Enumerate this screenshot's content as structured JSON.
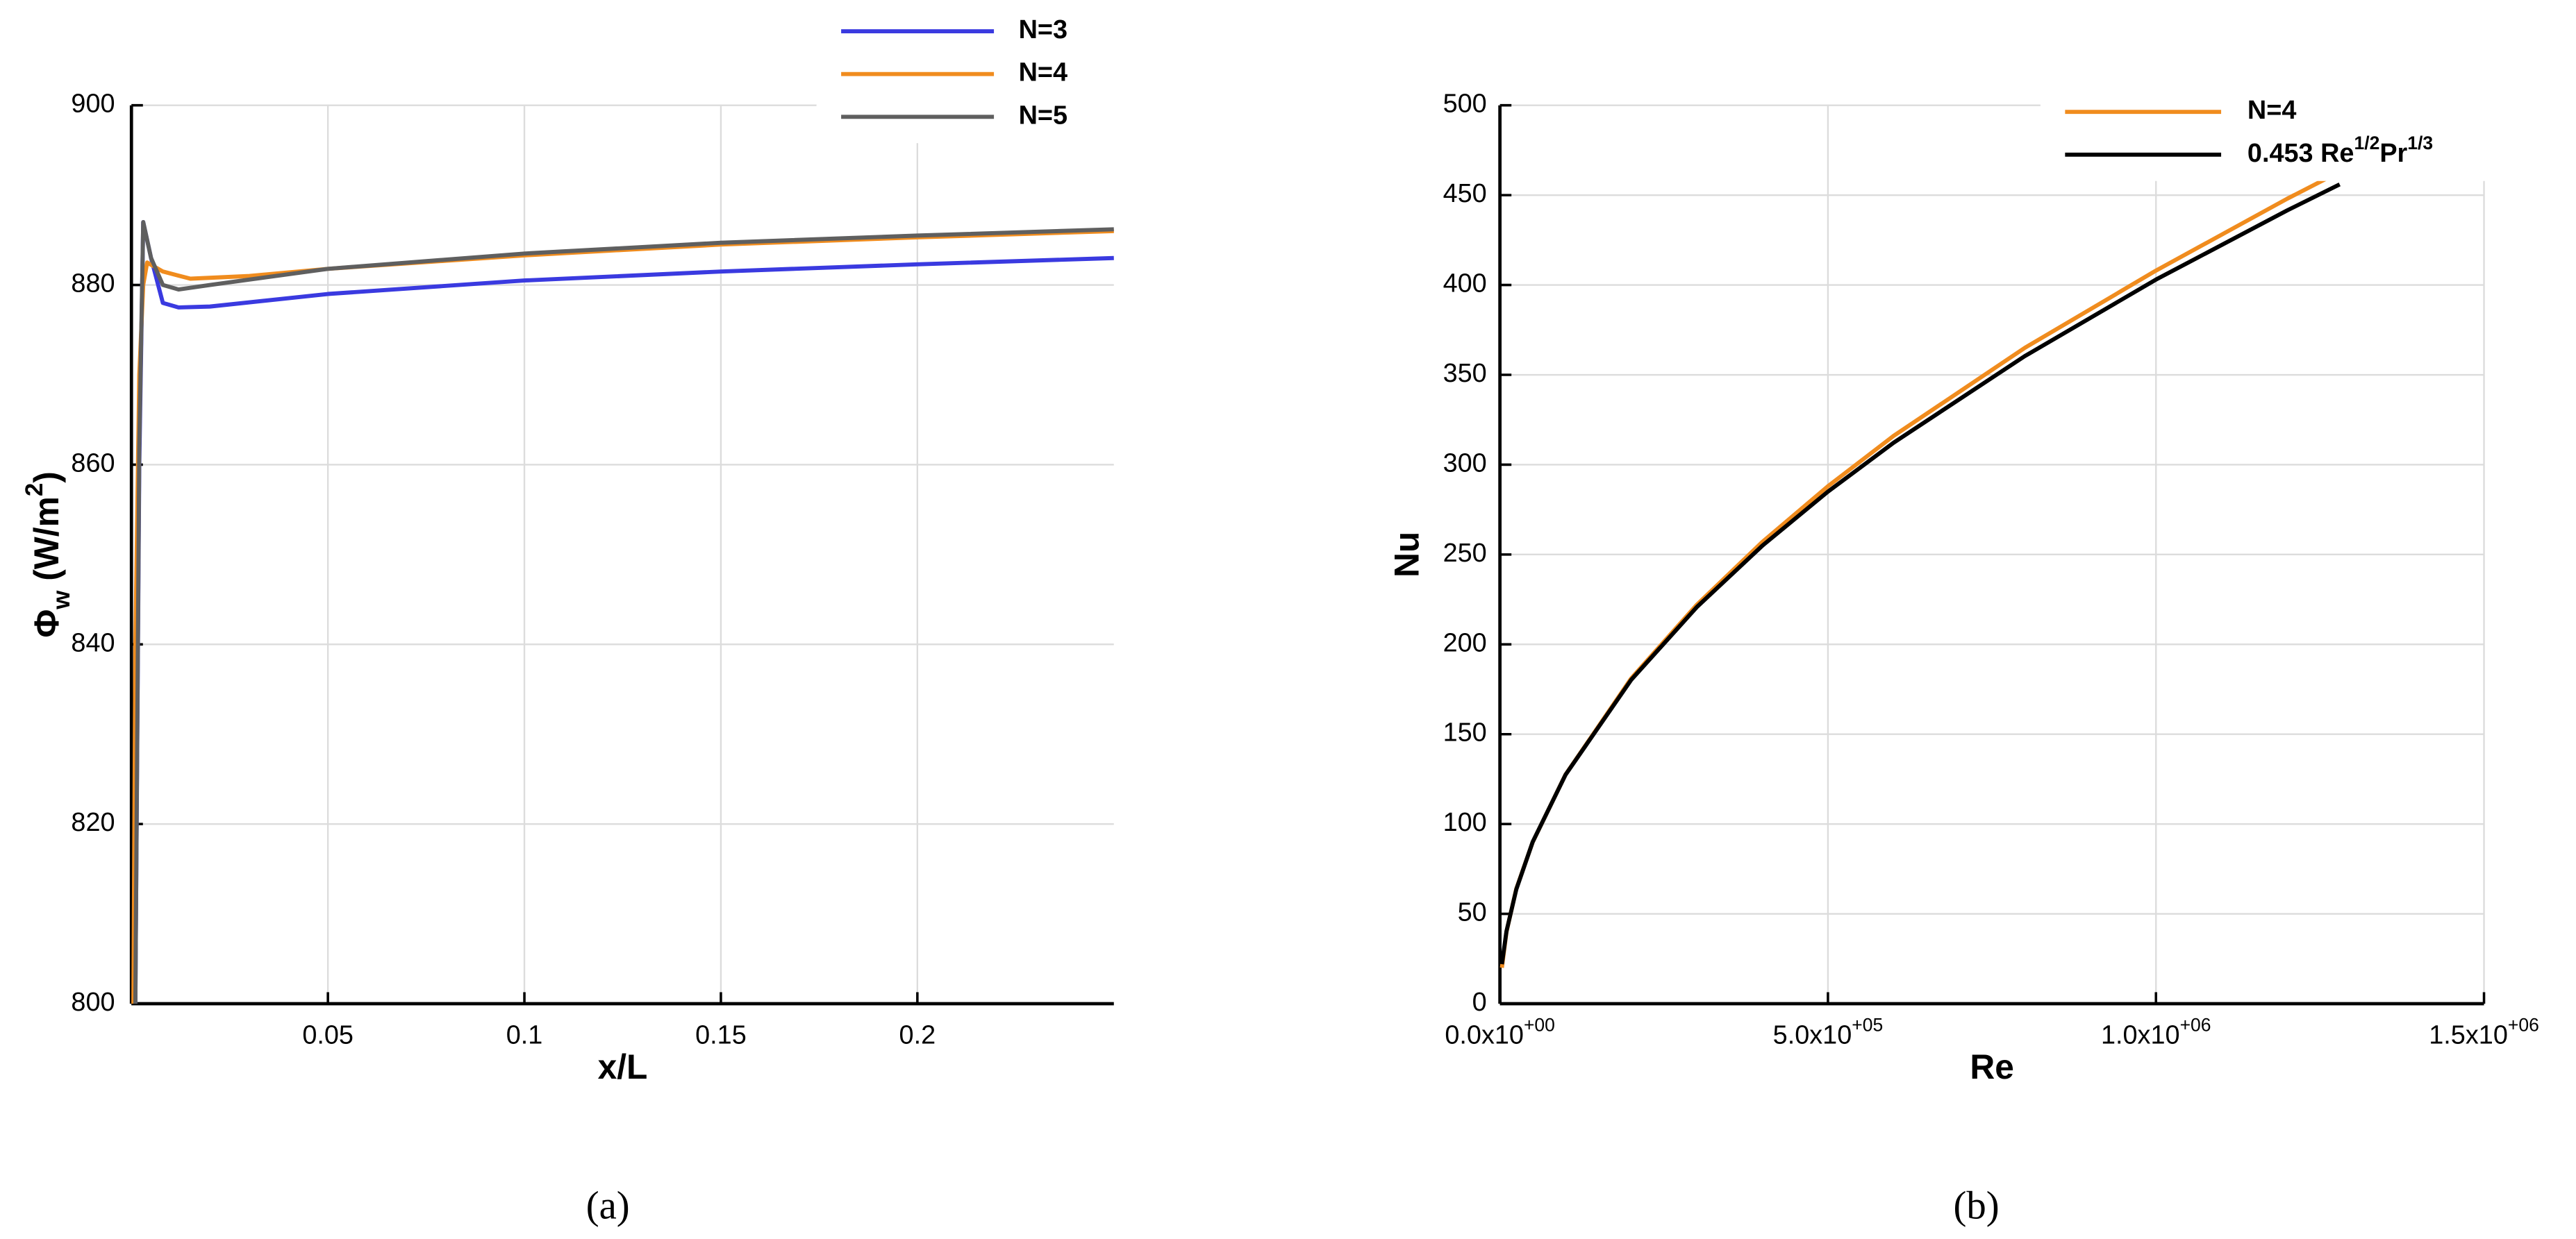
{
  "chart_data": [
    {
      "type": "line",
      "caption": "(a)",
      "xlabel": "x/L",
      "ylabel": "Φw (W/m2)",
      "xlim": [
        0,
        0.25
      ],
      "ylim": [
        800,
        900
      ],
      "xticks": [
        0.05,
        0.1,
        0.15,
        0.2
      ],
      "yticks": [
        800,
        820,
        840,
        860,
        880,
        900
      ],
      "grid": true,
      "legend": "top-right",
      "series": [
        {
          "name": "N=3",
          "color": "#3a3ae0",
          "x": [
            0.001,
            0.002,
            0.003,
            0.005,
            0.008,
            0.012,
            0.02,
            0.05,
            0.1,
            0.15,
            0.2,
            0.25
          ],
          "values": [
            800,
            860,
            887,
            883,
            878,
            877.5,
            877.6,
            879,
            880.5,
            881.5,
            882.3,
            883
          ]
        },
        {
          "name": "N=4",
          "color": "#f08c1e",
          "x": [
            0.0005,
            0.001,
            0.002,
            0.003,
            0.004,
            0.008,
            0.015,
            0.03,
            0.05,
            0.1,
            0.15,
            0.2,
            0.25
          ],
          "values": [
            800,
            840,
            870,
            880,
            882.5,
            881.5,
            880.7,
            881,
            881.8,
            883.3,
            884.5,
            885.3,
            886
          ]
        },
        {
          "name": "N=5",
          "color": "#5f5f5f",
          "x": [
            0.001,
            0.002,
            0.003,
            0.005,
            0.008,
            0.012,
            0.02,
            0.05,
            0.1,
            0.15,
            0.2,
            0.25
          ],
          "values": [
            800,
            862,
            887,
            883,
            880,
            879.5,
            880,
            881.8,
            883.5,
            884.7,
            885.5,
            886.2
          ]
        }
      ]
    },
    {
      "type": "line",
      "caption": "(b)",
      "xlabel": "Re",
      "ylabel": "Nu",
      "xlim": [
        0,
        1500000
      ],
      "ylim": [
        0,
        500
      ],
      "xticks": [
        {
          "value": 0,
          "label": "0.0x10+00"
        },
        {
          "value": 500000,
          "label": "5.0x10+05"
        },
        {
          "value": 1000000,
          "label": "1.0x10+06"
        },
        {
          "value": 1500000,
          "label": "1.5x10+06"
        }
      ],
      "yticks": [
        0,
        50,
        100,
        150,
        200,
        250,
        300,
        350,
        400,
        450,
        500
      ],
      "grid": true,
      "legend": "top-right",
      "series": [
        {
          "name": "N=4",
          "color": "#f08c1e",
          "x": [
            3000,
            10000,
            25000,
            50000,
            100000,
            200000,
            300000,
            400000,
            500000,
            600000,
            800000,
            1000000,
            1200000,
            1280000
          ],
          "values": [
            20,
            40,
            64,
            90,
            127.5,
            181,
            222,
            257,
            288,
            316,
            365,
            408,
            448,
            463
          ]
        },
        {
          "name": "0.453 Re1/2Pr1/3",
          "color": "#000000",
          "x": [
            3000,
            10000,
            25000,
            50000,
            100000,
            200000,
            300000,
            400000,
            500000,
            600000,
            800000,
            1000000,
            1200000,
            1280000
          ],
          "values": [
            22,
            40.3,
            63.7,
            90.1,
            127.4,
            180.2,
            220.7,
            254.9,
            285,
            312.2,
            360.4,
            403,
            441.5,
            456
          ]
        }
      ]
    }
  ]
}
